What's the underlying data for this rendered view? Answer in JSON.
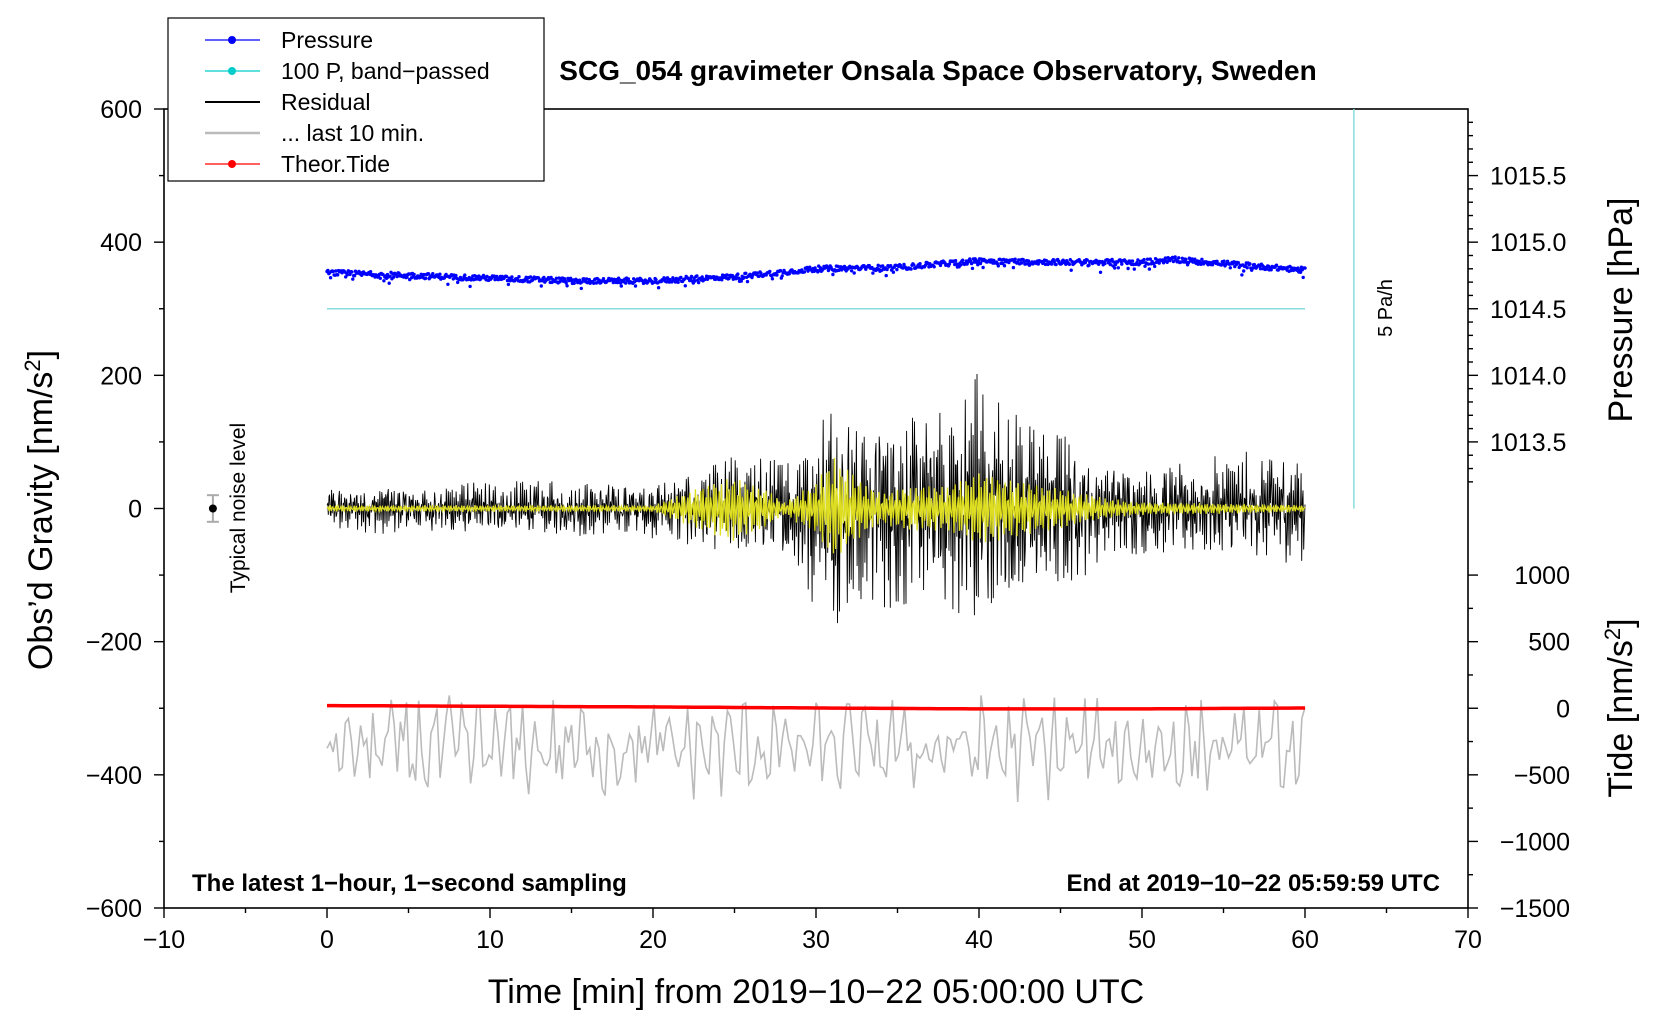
{
  "chart_data": {
    "type": "line",
    "title": "SCG_054 gravimeter Onsala Space Observatory, Sweden",
    "xlabel": "Time [min] from 2019−10−22 05:00:00 UTC",
    "ylabel_left": "Obs’d Gravity [nm/s",
    "ylabel_left_sup": "2",
    "ylabel_left_end": "]",
    "ylabel_right_top": "Pressure [hPa]",
    "ylabel_right_bottom": "Tide [nm/s",
    "ylabel_right_bottom_sup": "2",
    "ylabel_right_bottom_end": "]",
    "xlim": [
      -10,
      70
    ],
    "ylim": [
      -600,
      600
    ],
    "xticks": [
      -10,
      0,
      10,
      20,
      30,
      40,
      50,
      60,
      70
    ],
    "xtick_labels": [
      "−10",
      "0",
      "10",
      "20",
      "30",
      "40",
      "50",
      "60",
      "70"
    ],
    "yticks": [
      -600,
      -400,
      -200,
      0,
      200,
      400,
      600
    ],
    "ytick_labels": [
      "−600",
      "−400",
      "−200",
      "0",
      "200",
      "400",
      "600"
    ],
    "pressure_ticks": [
      1013.5,
      1014.0,
      1014.5,
      1015.0,
      1015.5
    ],
    "pressure_tick_labels": [
      "1013.5",
      "1014.0",
      "1014.5",
      "1015.0",
      "1015.5"
    ],
    "pressure_axis_map": {
      "hpa_ref": 1014.5,
      "gravity_ref": 300,
      "gravity_per_hpa": 200
    },
    "tide_ticks": [
      -1500,
      -1000,
      -500,
      0,
      500,
      1000
    ],
    "tide_tick_labels": [
      "−1500",
      "−1000",
      "−500",
      "0",
      "500",
      "1000"
    ],
    "tide_axis_map": {
      "tide_ref": 0,
      "gravity_ref": -300,
      "gravity_per_unit": 0.2
    },
    "legend": {
      "position": "top-left",
      "entries": [
        {
          "label": "Pressure",
          "color": "#0000ff",
          "marker": true
        },
        {
          "label": "100 P, band−passed",
          "color": "#00cccc",
          "marker": true
        },
        {
          "label": "Residual",
          "color": "#000000",
          "marker": false
        },
        {
          "label": "... last 10 min.",
          "color": "#bbbbbb",
          "marker": false
        },
        {
          "label": "Theor.Tide",
          "color": "#ff0000",
          "marker": true
        }
      ]
    },
    "series": [
      {
        "name": "Pressure",
        "color": "#0000ff",
        "unit": "hPa",
        "x": [
          0,
          5,
          10,
          15,
          20,
          25,
          30,
          35,
          40,
          45,
          50,
          52,
          55,
          60
        ],
        "values": [
          1014.77,
          1014.75,
          1014.73,
          1014.71,
          1014.71,
          1014.74,
          1014.8,
          1014.81,
          1014.86,
          1014.85,
          1014.85,
          1014.87,
          1014.84,
          1014.79
        ]
      },
      {
        "name": "100 P, band−passed",
        "color": "#88dddd",
        "unit": "nm/s²",
        "x": [
          0,
          60
        ],
        "values": [
          300,
          300
        ]
      },
      {
        "name": "Residual",
        "color": "#000000",
        "unit": "nm/s²",
        "envelope_x": [
          0,
          5,
          10,
          15,
          20,
          23,
          25,
          28,
          30,
          31,
          33,
          35,
          37,
          40,
          42,
          45,
          48,
          50,
          55,
          58,
          60
        ],
        "envelope_amp": [
          30,
          35,
          35,
          38,
          40,
          55,
          70,
          65,
          150,
          160,
          120,
          140,
          130,
          190,
          130,
          110,
          70,
          60,
          70,
          80,
          80
        ]
      },
      {
        "name": "... last 10 min.",
        "color": "#bbbbbb",
        "unit": "nm/s²",
        "x": [
          0,
          60
        ],
        "baseline": -360,
        "amplitude": 70
      },
      {
        "name": "Theor.Tide",
        "color": "#ff0000",
        "unit": "nm/s²",
        "x": [
          0,
          10,
          20,
          30,
          40,
          50,
          60
        ],
        "values": [
          20,
          15,
          10,
          2,
          -5,
          -5,
          2
        ]
      },
      {
        "name": "Filtered",
        "color": "#dddd22",
        "unit": "nm/s²",
        "envelope_x": [
          0,
          20,
          23,
          25,
          27,
          28,
          30,
          31,
          33,
          34,
          36,
          38,
          40,
          42,
          45,
          48,
          50,
          55,
          60
        ],
        "envelope_amp": [
          5,
          5,
          35,
          50,
          30,
          10,
          40,
          80,
          40,
          25,
          35,
          35,
          55,
          45,
          30,
          15,
          10,
          8,
          5
        ]
      }
    ],
    "noise_label": "Typical noise level",
    "noise_point": {
      "x": -7,
      "y": 0,
      "err": 20
    },
    "rate_label": "5 Pa/h",
    "rate_line": {
      "x": 63,
      "y_from": 0,
      "y_to": 600
    },
    "annotation_left": "The latest 1−hour, 1−second sampling",
    "annotation_right": "End at 2019−10−22 05:59:59 UTC"
  }
}
